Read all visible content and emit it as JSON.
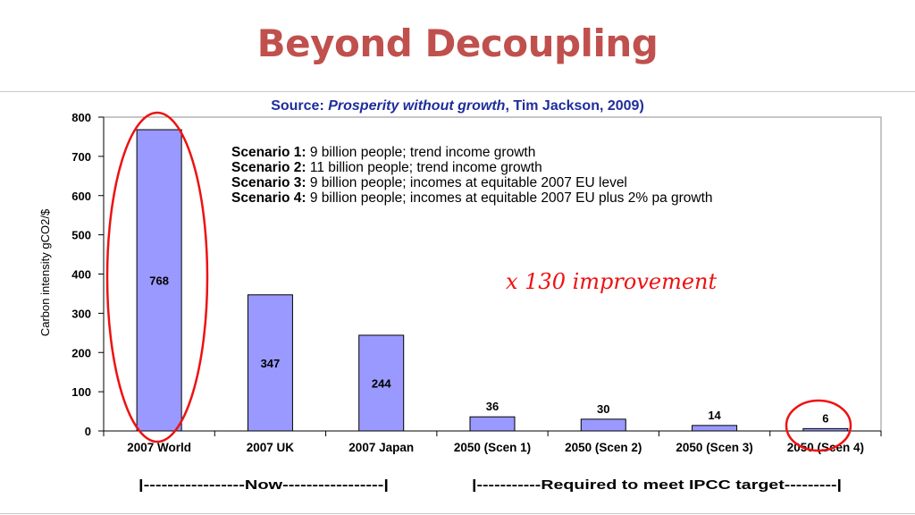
{
  "slide": {
    "title": "Beyond Decoupling",
    "source_prefix": "Source: ",
    "source_title": "Prosperity without growth",
    "source_suffix": ", Tim Jackson, 2009)"
  },
  "scenarios": [
    {
      "label": "Scenario 1:",
      "text": " 9 billion people; trend income growth"
    },
    {
      "label": "Scenario 2:",
      "text": " 11 billion people; trend income growth"
    },
    {
      "label": "Scenario 3:",
      "text": " 9 billion people; incomes at equitable 2007 EU level"
    },
    {
      "label": "Scenario 4:",
      "text": " 9 billion people; incomes at equitable 2007 EU plus 2% pa growth"
    }
  ],
  "annotations": {
    "improvement": "x 130 improvement",
    "now_bracket": "|-----------------Now-----------------|",
    "required_bracket": "|-----------Required to meet IPCC target---------|"
  },
  "colors": {
    "title": "#c0504d",
    "source": "#1f2d9b",
    "bar_fill": "#9999ff",
    "highlight": "#ee1111"
  },
  "chart_data": {
    "type": "bar",
    "categories": [
      "2007 World",
      "2007 UK",
      "2007 Japan",
      "2050 (Scen 1)",
      "2050 (Scen 2)",
      "2050 (Scen 3)",
      "2050 (Scen 4)"
    ],
    "values": [
      768,
      347,
      244,
      36,
      30,
      14,
      6
    ],
    "data_labels": [
      "768",
      "347",
      "244",
      "36",
      "30",
      "14",
      "6"
    ],
    "ylabel": "Carbon intensity gCO2/$",
    "ylim": [
      0,
      800
    ],
    "yticks": [
      0,
      100,
      200,
      300,
      400,
      500,
      600,
      700,
      800
    ],
    "grid": false,
    "highlighted_categories": [
      "2007 World",
      "2050 (Scen 4)"
    ]
  }
}
